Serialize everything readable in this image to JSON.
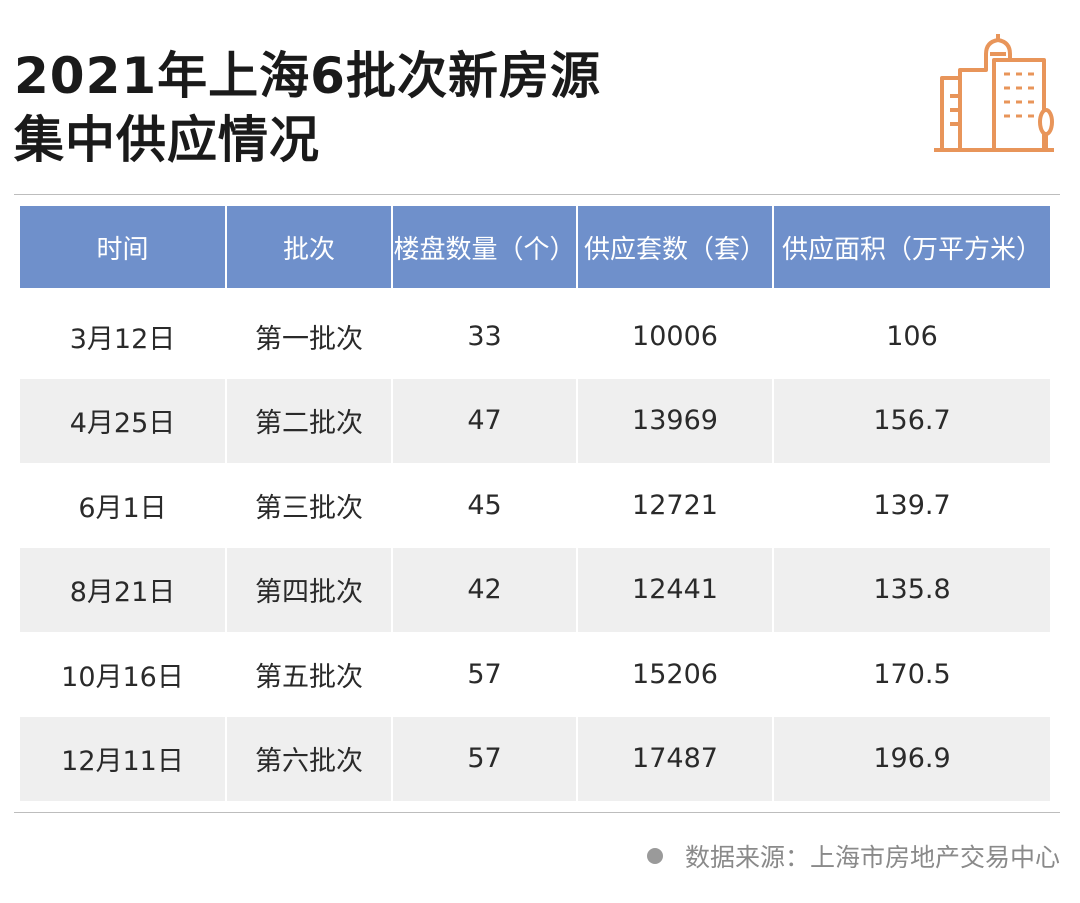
{
  "title": {
    "line1": "2021年上海6批次新房源",
    "line2": "集中供应情况"
  },
  "logo_icon": "city-buildings-icon",
  "accent_color": "#e8955a",
  "header_color": "#6f90cb",
  "chart_data": {
    "type": "table",
    "columns": [
      "时间",
      "批次",
      "楼盘数量（个）",
      "供应套数（套）",
      "供应面积（万平方米）"
    ],
    "rows": [
      [
        "3月12日",
        "第一批次",
        "33",
        "10006",
        "106"
      ],
      [
        "4月25日",
        "第二批次",
        "47",
        "13969",
        "156.7"
      ],
      [
        "6月1日",
        "第三批次",
        "45",
        "12721",
        "139.7"
      ],
      [
        "8月21日",
        "第四批次",
        "42",
        "12441",
        "135.8"
      ],
      [
        "10月16日",
        "第五批次",
        "57",
        "15206",
        "170.5"
      ],
      [
        "12月11日",
        "第六批次",
        "57",
        "17487",
        "196.9"
      ]
    ]
  },
  "source": "数据来源：上海市房地产交易中心"
}
